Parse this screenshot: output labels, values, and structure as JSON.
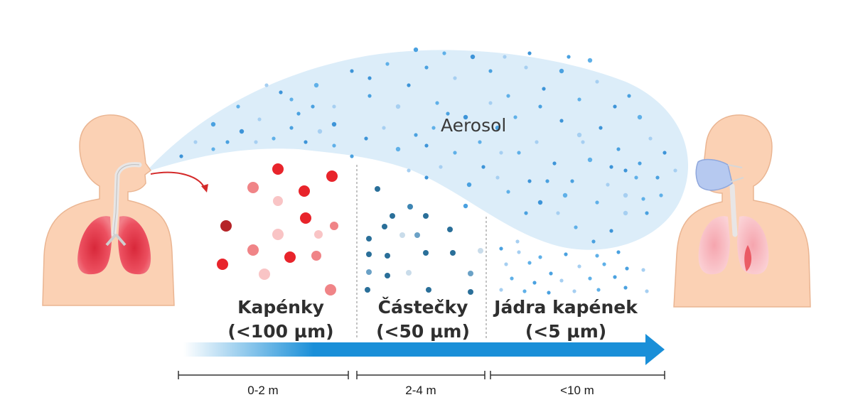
{
  "aerosol": {
    "label": "Aerosol"
  },
  "zones": [
    {
      "title": "Kapénky",
      "size": "(<100 µm)",
      "distance": "0-2 m"
    },
    {
      "title": "Částečky",
      "size": "(<50 µm)",
      "distance": "2-4 m"
    },
    {
      "title": "Jádra kapének",
      "size": "(<5 µm)",
      "distance": "<10 m"
    }
  ],
  "colors": {
    "skin": "#fbd1b4",
    "skin_outline": "#e9b08e",
    "lungs": "#ea4f5c",
    "cloud": "#dcedf9",
    "droplet_red": "#e8242b",
    "particle_blue": "#2a6f99",
    "aerosol_dot": "#4aa1e0",
    "arrow_blue": "#1a8fd8",
    "mask": "#b6c9f0"
  }
}
